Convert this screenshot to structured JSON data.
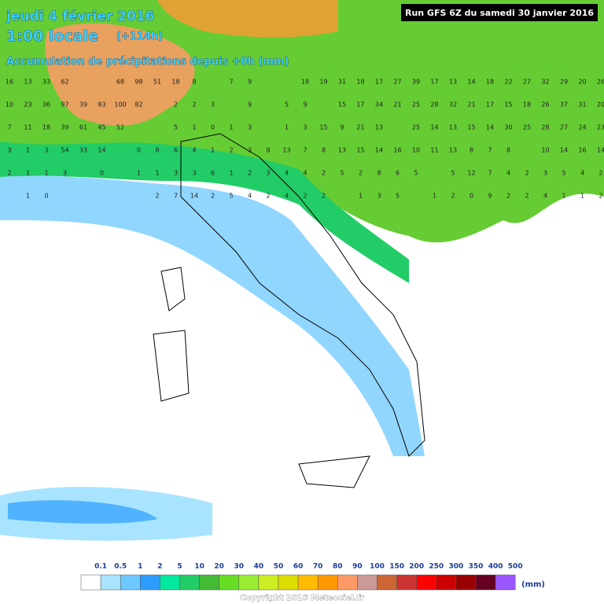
{
  "header": {
    "date": "jeudi 4 février 2016",
    "time": "1:00 locale",
    "lead": "(+114h)",
    "product": "Accumulation de précipitations depuis +0h (mm)",
    "run": "Run GFS 6Z du samedi 30 janvier 2016"
  },
  "grid": [
    [
      16,
      13,
      33,
      62,
      null,
      null,
      68,
      98,
      51,
      18,
      8,
      null,
      7,
      9,
      null,
      null,
      18,
      19,
      31,
      18,
      17,
      27,
      39,
      17,
      13,
      14,
      18,
      22,
      27,
      32,
      29,
      20,
      26
    ],
    [
      10,
      23,
      36,
      97,
      39,
      83,
      100,
      82,
      null,
      2,
      2,
      3,
      null,
      9,
      null,
      5,
      9,
      null,
      15,
      17,
      34,
      21,
      25,
      28,
      32,
      21,
      17,
      15,
      18,
      26,
      37,
      31,
      20
    ],
    [
      7,
      11,
      18,
      39,
      61,
      45,
      52,
      null,
      null,
      5,
      1,
      0,
      1,
      3,
      null,
      1,
      3,
      15,
      9,
      21,
      13,
      null,
      25,
      14,
      13,
      15,
      14,
      30,
      25,
      28,
      27,
      24,
      23
    ],
    [
      3,
      1,
      3,
      54,
      33,
      14,
      null,
      0,
      8,
      6,
      4,
      1,
      2,
      3,
      8,
      13,
      7,
      8,
      13,
      15,
      14,
      16,
      10,
      11,
      13,
      8,
      7,
      8,
      null,
      10,
      14,
      16,
      14
    ],
    [
      2,
      1,
      1,
      3,
      null,
      0,
      null,
      1,
      1,
      3,
      3,
      6,
      1,
      2,
      3,
      4,
      4,
      2,
      5,
      2,
      8,
      6,
      5,
      null,
      5,
      12,
      7,
      4,
      2,
      3,
      5,
      4,
      2
    ],
    [
      null,
      1,
      0,
      null,
      null,
      null,
      null,
      null,
      2,
      7,
      14,
      2,
      5,
      4,
      2,
      4,
      2,
      2,
      null,
      1,
      3,
      5,
      null,
      1,
      2,
      0,
      9,
      2,
      2,
      4,
      1,
      1,
      2
    ]
  ],
  "legend": {
    "labels": [
      0.1,
      0.5,
      1,
      2,
      5,
      10,
      20,
      30,
      40,
      50,
      60,
      70,
      80,
      90,
      100,
      150,
      200,
      250,
      300,
      350,
      400,
      500
    ],
    "colors": [
      "#ffffff",
      "#a8e4ff",
      "#6cc8ff",
      "#2c9cff",
      "#00e8a0",
      "#22cc66",
      "#44bb33",
      "#66dd22",
      "#99ee33",
      "#ccee22",
      "#dddd00",
      "#ffbb00",
      "#ff9900",
      "#ff9966",
      "#cc9999",
      "#cc6633",
      "#cc3333",
      "#ff0000",
      "#cc0000",
      "#990000",
      "#660022",
      "#9955ff"
    ],
    "unit": "(mm)"
  },
  "footer": "Copyright 2016 Meteociel.fr"
}
